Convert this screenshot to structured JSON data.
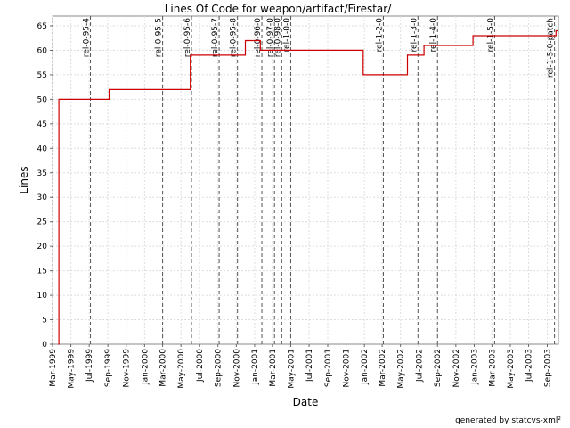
{
  "chart_data": {
    "type": "line",
    "title": "Lines Of Code for weapon/artifact/Firestar/",
    "xlabel": "Date",
    "ylabel": "Lines",
    "ylim": [
      0,
      67
    ],
    "yticks": [
      0,
      5,
      10,
      15,
      20,
      25,
      30,
      35,
      40,
      45,
      50,
      55,
      60,
      65
    ],
    "xlim": [
      "1999-03-01",
      "2003-10-08"
    ],
    "xticks": [
      {
        "date": "1999-03-01",
        "label": "Mar-1999"
      },
      {
        "date": "1999-05-01",
        "label": "May-1999"
      },
      {
        "date": "1999-07-01",
        "label": "Jul-1999"
      },
      {
        "date": "1999-09-01",
        "label": "Sep-1999"
      },
      {
        "date": "1999-11-01",
        "label": "Nov-1999"
      },
      {
        "date": "2000-01-01",
        "label": "Jan-2000"
      },
      {
        "date": "2000-03-01",
        "label": "Mar-2000"
      },
      {
        "date": "2000-05-01",
        "label": "May-2000"
      },
      {
        "date": "2000-07-01",
        "label": "Jul-2000"
      },
      {
        "date": "2000-09-01",
        "label": "Sep-2000"
      },
      {
        "date": "2000-11-01",
        "label": "Nov-2000"
      },
      {
        "date": "2001-01-01",
        "label": "Jan-2001"
      },
      {
        "date": "2001-03-01",
        "label": "Mar-2001"
      },
      {
        "date": "2001-05-01",
        "label": "May-2001"
      },
      {
        "date": "2001-07-01",
        "label": "Jul-2001"
      },
      {
        "date": "2001-09-01",
        "label": "Sep-2001"
      },
      {
        "date": "2001-11-01",
        "label": "Nov-2001"
      },
      {
        "date": "2002-01-01",
        "label": "Jan-2002"
      },
      {
        "date": "2002-03-01",
        "label": "Mar-2002"
      },
      {
        "date": "2002-05-01",
        "label": "May-2002"
      },
      {
        "date": "2002-07-01",
        "label": "Jul-2002"
      },
      {
        "date": "2002-09-01",
        "label": "Sep-2002"
      },
      {
        "date": "2002-11-01",
        "label": "Nov-2002"
      },
      {
        "date": "2003-01-01",
        "label": "Jan-2003"
      },
      {
        "date": "2003-03-01",
        "label": "Mar-2003"
      },
      {
        "date": "2003-05-01",
        "label": "May-2003"
      },
      {
        "date": "2003-07-01",
        "label": "Jul-2003"
      },
      {
        "date": "2003-09-01",
        "label": "Sep-2003"
      }
    ],
    "grid": true,
    "step": true,
    "series": [
      {
        "color": "#cc0000",
        "points": [
          {
            "date": "1999-03-20",
            "y": 0
          },
          {
            "date": "1999-03-22",
            "y": 50
          },
          {
            "date": "1999-09-05",
            "y": 52
          },
          {
            "date": "2000-06-01",
            "y": 59
          },
          {
            "date": "2000-12-01",
            "y": 62
          },
          {
            "date": "2001-01-20",
            "y": 60
          },
          {
            "date": "2001-12-28",
            "y": 55
          },
          {
            "date": "2002-05-24",
            "y": 59
          },
          {
            "date": "2002-07-18",
            "y": 61
          },
          {
            "date": "2002-12-28",
            "y": 63
          },
          {
            "date": "2003-09-30",
            "y": 64
          },
          {
            "date": "2003-10-05",
            "y": 64
          }
        ]
      }
    ],
    "tags": [
      {
        "label": "rel-0-95-4",
        "date": "1999-07-05"
      },
      {
        "label": "rel-0-95-5",
        "date": "2000-03-01"
      },
      {
        "label": "rel-0-95-6",
        "date": "2000-06-05"
      },
      {
        "label": "rel-0-95-7",
        "date": "2000-09-05"
      },
      {
        "label": "rel-0-95-8",
        "date": "2000-11-05"
      },
      {
        "label": "rel-0-96-0",
        "date": "2001-01-25"
      },
      {
        "label": "rel-0-97-0",
        "date": "2001-03-08"
      },
      {
        "label": "rel-0-98-0",
        "date": "2001-04-01"
      },
      {
        "label": "rel-1-0-0",
        "date": "2001-05-01"
      },
      {
        "label": "rel-1-2-0",
        "date": "2002-03-05"
      },
      {
        "label": "rel-1-3-0",
        "date": "2002-06-28"
      },
      {
        "label": "rel-1-4-0",
        "date": "2002-09-01"
      },
      {
        "label": "rel-1-5-0",
        "date": "2003-03-10"
      },
      {
        "label": "rel-1-5-0-patch",
        "date": "2003-09-25"
      }
    ]
  },
  "footer": {
    "credit": "generated by statcvs-xml²"
  }
}
